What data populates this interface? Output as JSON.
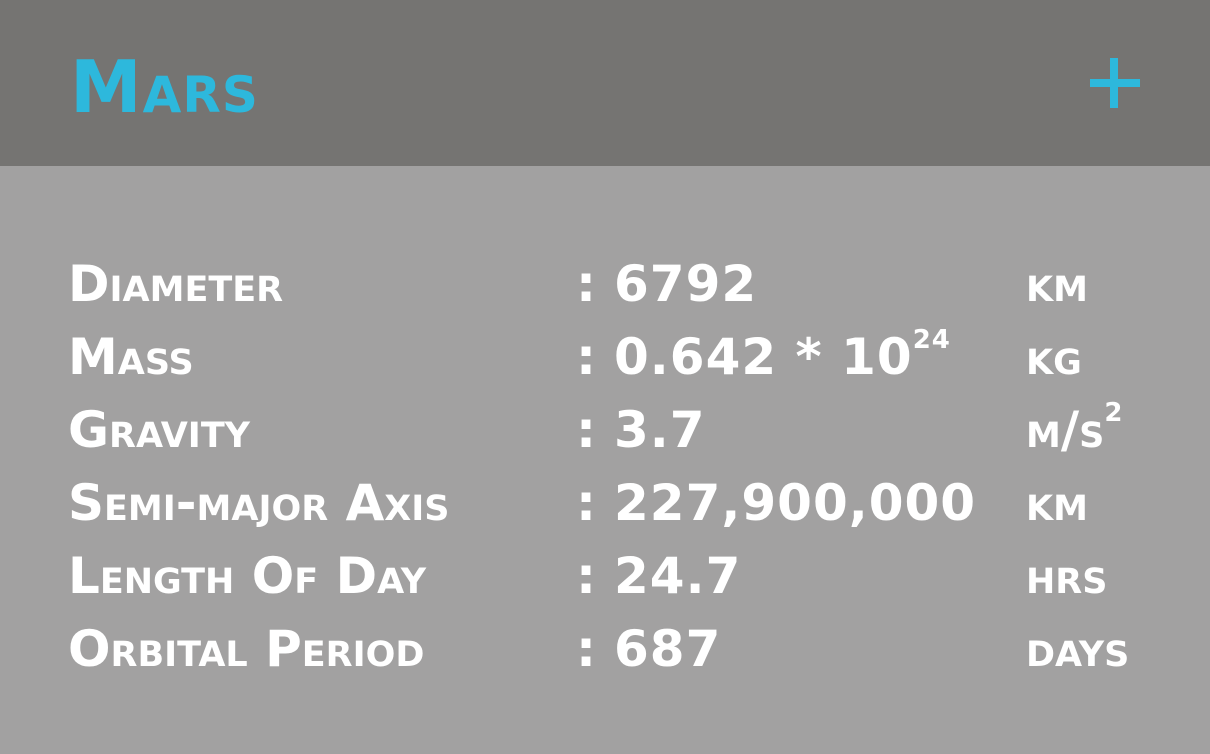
{
  "title": "Mars",
  "colors": {
    "header_bg": "#757472",
    "body_bg": "#a2a1a1",
    "accent": "#2db8dc",
    "text": "#ffffff"
  },
  "add_icon": "plus-icon",
  "rows": [
    {
      "label": "Diameter",
      "colon": ":",
      "value": "6792",
      "unit": "km"
    },
    {
      "label": "Mass",
      "colon": ":",
      "value": "0.642 * 10",
      "value_exponent": "24",
      "unit": "kg"
    },
    {
      "label": "Gravity",
      "colon": ":",
      "value": "3.7",
      "unit": "m/s",
      "unit_exponent": "2"
    },
    {
      "label": "Semi-major Axis",
      "colon": ":",
      "value": "227,900,000",
      "unit": "km"
    },
    {
      "label": "Length Of Day",
      "colon": ":",
      "value": "24.7",
      "unit": "hrs"
    },
    {
      "label": "Orbital Period",
      "colon": ":",
      "value": "687",
      "unit": "days"
    }
  ]
}
